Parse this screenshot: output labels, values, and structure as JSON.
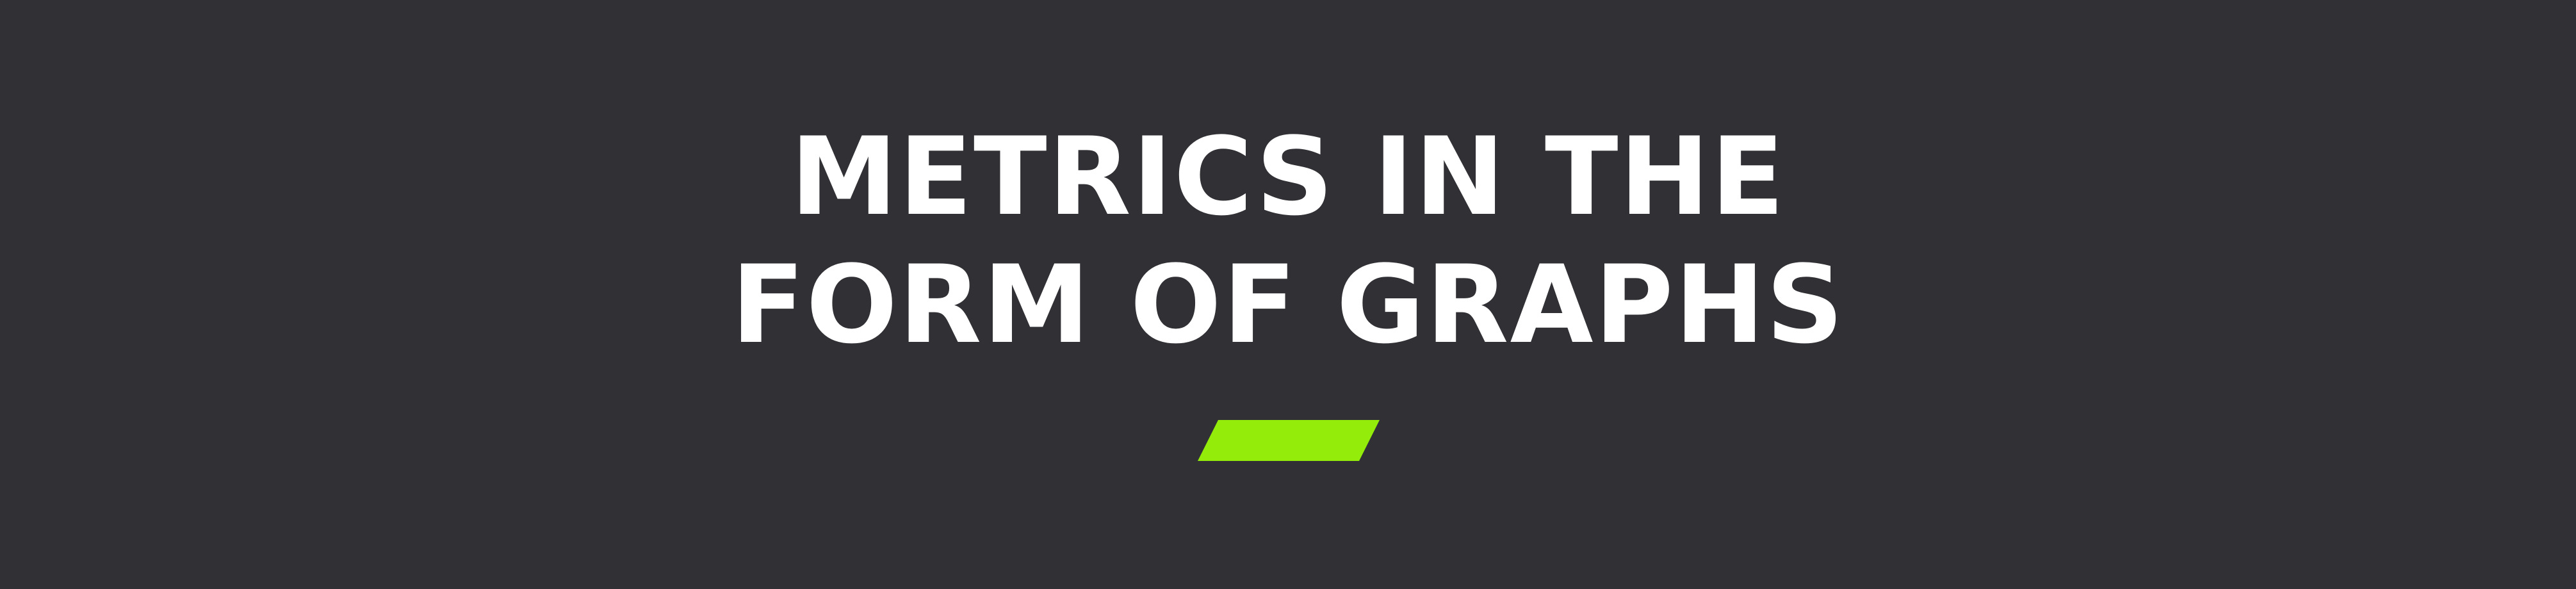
{
  "banner": {
    "title_lines": [
      "METRICS IN THE",
      "FORM OF GRAPHS"
    ]
  },
  "colors": {
    "background": "#303035",
    "text": "#ffffff",
    "accent": "#94EC0A"
  }
}
